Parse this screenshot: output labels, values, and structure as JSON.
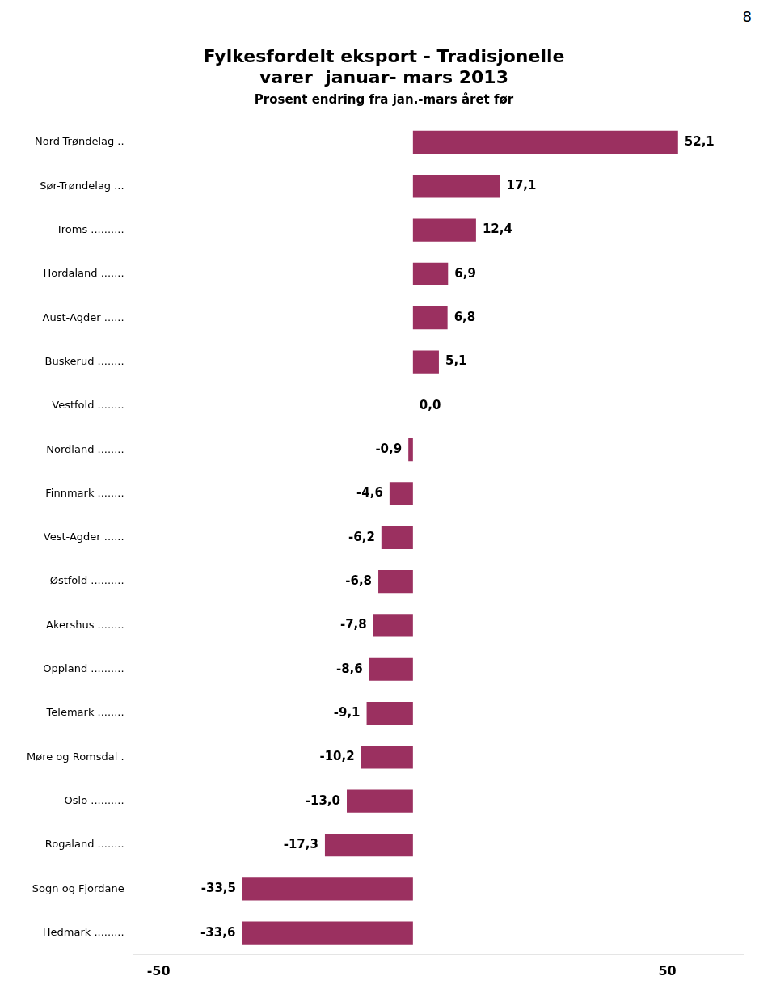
{
  "chart_data": {
    "type": "bar",
    "orientation": "horizontal",
    "title": [
      "Fylkesfordelt eksport - Tradisjonelle",
      "varer  januar- mars 2013"
    ],
    "subtitle": "Prosent endring fra jan.-mars året før",
    "annotations": [
      "8"
    ],
    "categories": [
      "Nord-Trøndelag ..",
      "Sør-Trøndelag ...",
      "Troms ..........",
      "Hordaland .......",
      "Aust-Agder ......",
      "Buskerud ........",
      "Vestfold ........",
      "Nordland ........",
      "Finnmark ........",
      "Vest-Agder ......",
      "Østfold ..........",
      "Akershus ........",
      "Oppland ..........",
      "Telemark ........",
      "Møre og Romsdal .",
      "Oslo ..........",
      "Rogaland ........",
      "Sogn og Fjordane",
      "Hedmark ........."
    ],
    "values": [
      52.1,
      17.1,
      12.4,
      6.9,
      6.8,
      5.1,
      0.0,
      -0.9,
      -4.6,
      -6.2,
      -6.8,
      -7.8,
      -8.6,
      -9.1,
      -10.2,
      -13.0,
      -17.3,
      -33.5,
      -33.6
    ],
    "value_labels": [
      "52,1",
      "17,1",
      "12,4",
      "6,9",
      "6,8",
      "5,1",
      "0,0",
      "-0,9",
      "-4,6",
      "-6,2",
      "-6,8",
      "-7,8",
      "-8,6",
      "-9,1",
      "-10,2",
      "-13,0",
      "-17,3",
      "-33,5",
      "-33,6"
    ],
    "data_labels": true,
    "color": "#9b3060",
    "xlim": [
      -55,
      65
    ],
    "xticks": [
      -50,
      50
    ],
    "grid": false
  }
}
